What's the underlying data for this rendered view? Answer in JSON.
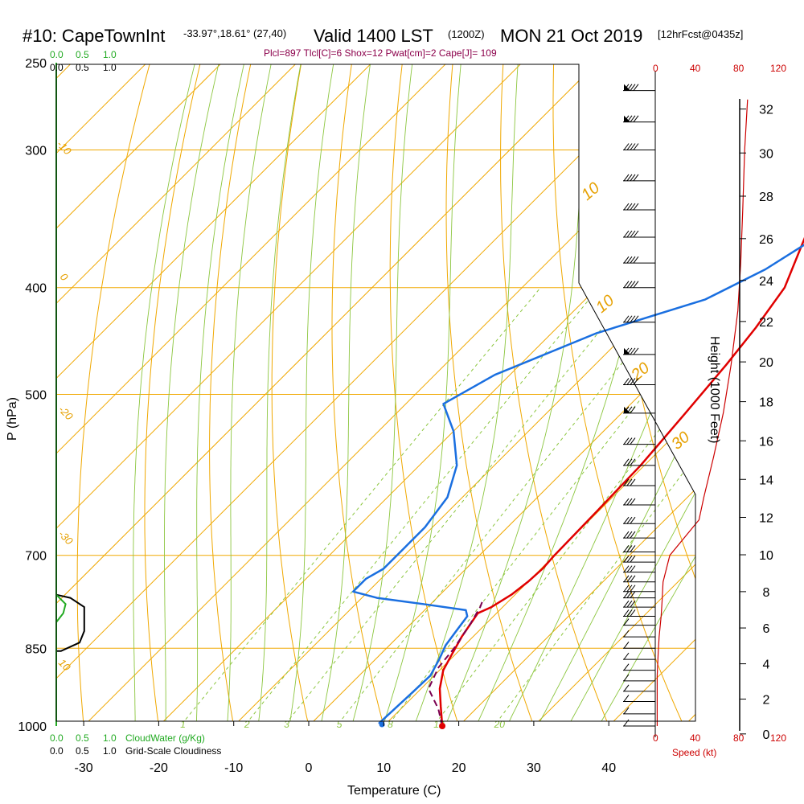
{
  "header": {
    "station": "#10: CapeTownInt",
    "coords": "-33.97°,18.61° (27,40)",
    "valid": "Valid 1400 LST",
    "zulu": "(1200Z)",
    "date": "MON 21 Oct 2019",
    "forecast": "[12hrFcst@0435z]"
  },
  "indices": "Plcl=897 Tlcl[C]=6 Shox=12 Pwat[cm]=2 Cape[J]= 109",
  "cloud_scale_top_green": [
    "0.0",
    "0.5",
    "1.0"
  ],
  "cloud_scale_top_black": [
    "0.0",
    "0.5",
    "1.0"
  ],
  "cloud_scale_bottom_green": [
    "0.0",
    "0.5",
    "1.0"
  ],
  "cloud_scale_bottom_black": [
    "0.0",
    "0.5",
    "1.0"
  ],
  "cloudwater_label": "CloudWater (g/Kg)",
  "cloudiness_label": "Grid-Scale Cloudiness",
  "speed_label": "Speed (kt)",
  "speed_ticks": [
    "0",
    "40",
    "80",
    "120"
  ],
  "colors": {
    "temperature": "#e00000",
    "dewpoint": "#1a6fe0",
    "parcel": "#7a0050",
    "isotherm": "#f0a800",
    "dry_adiabat": "#8cc63f",
    "moist_adiabat": "#8cc63f",
    "cloudwater": "#22aa22",
    "speed": "#cc0000"
  },
  "chart_data": {
    "type": "line",
    "title": "#10: CapeTownInt  Valid 1400 LST (1200Z) MON 21 Oct 2019",
    "xlabel": "Temperature (C)",
    "ylabel": "P (hPa)",
    "y2label": "Height (1000 Feet)",
    "x_ticks": [
      -30,
      -20,
      -10,
      0,
      10,
      20,
      30,
      40
    ],
    "y_ticks": [
      1000,
      850,
      700,
      500,
      400,
      300,
      250
    ],
    "y2_ticks": [
      0,
      2,
      4,
      6,
      8,
      10,
      12,
      14,
      16,
      18,
      20,
      22,
      24,
      26,
      28,
      30,
      32
    ],
    "isotherm_labels": [
      "0",
      "10",
      "20",
      "30",
      "-10",
      "-20",
      "-30",
      "-10",
      "0",
      "10"
    ],
    "mixing_ratio_labels": [
      "1",
      "2",
      "3",
      "5",
      "8",
      "12",
      "20"
    ],
    "series": [
      {
        "name": "Temperature",
        "points": [
          [
            17.8,
            1000
          ],
          [
            15,
            960
          ],
          [
            12.5,
            925
          ],
          [
            10.5,
            890
          ],
          [
            9.5,
            860
          ],
          [
            8.5,
            830
          ],
          [
            7.5,
            790
          ],
          [
            8.5,
            780
          ],
          [
            9.5,
            760
          ],
          [
            10,
            740
          ],
          [
            10.2,
            720
          ],
          [
            10,
            700
          ],
          [
            9.8,
            640
          ],
          [
            9.5,
            580
          ],
          [
            8.5,
            520
          ],
          [
            7.5,
            470
          ],
          [
            6.5,
            435
          ],
          [
            5,
            400
          ],
          [
            1,
            360
          ],
          [
            -6,
            300
          ],
          [
            -12,
            265
          ]
        ]
      },
      {
        "name": "Dewpoint",
        "points": [
          [
            9,
            995
          ],
          [
            9.3,
            940
          ],
          [
            9.5,
            900
          ],
          [
            8.5,
            870
          ],
          [
            7.5,
            845
          ],
          [
            7,
            820
          ],
          [
            6.5,
            795
          ],
          [
            5.5,
            785
          ],
          [
            -1,
            775
          ],
          [
            -8,
            765
          ],
          [
            -12,
            755
          ],
          [
            -12,
            735
          ],
          [
            -11,
            720
          ],
          [
            -11,
            690
          ],
          [
            -11,
            660
          ],
          [
            -12,
            620
          ],
          [
            -15,
            580
          ],
          [
            -20,
            540
          ],
          [
            -25,
            510
          ],
          [
            -22,
            480
          ],
          [
            -14,
            440
          ],
          [
            -4,
            410
          ],
          [
            0,
            385
          ],
          [
            2,
            365
          ],
          [
            1,
            330
          ],
          [
            -2,
            305
          ],
          [
            -6,
            270
          ]
        ]
      },
      {
        "name": "Parcel",
        "points": [
          [
            17.8,
            1000
          ],
          [
            15,
            965
          ],
          [
            11,
            925
          ],
          [
            9.5,
            885
          ],
          [
            9,
            850
          ],
          [
            8,
            810
          ],
          [
            7,
            780
          ],
          [
            6.5,
            770
          ]
        ]
      }
    ],
    "surface_temperature": 17.8,
    "surface_dewpoint": 10.3,
    "speed_profile_kt": [
      [
        2,
        1000
      ],
      [
        2,
        960
      ],
      [
        2,
        900
      ],
      [
        3,
        860
      ],
      [
        4,
        830
      ],
      [
        6,
        795
      ],
      [
        7,
        770
      ],
      [
        8,
        740
      ],
      [
        15,
        700
      ],
      [
        45,
        650
      ],
      [
        50,
        620
      ],
      [
        60,
        570
      ],
      [
        70,
        520
      ],
      [
        78,
        470
      ],
      [
        85,
        420
      ],
      [
        88,
        380
      ],
      [
        90,
        340
      ],
      [
        92,
        300
      ],
      [
        95,
        270
      ]
    ],
    "wind_barbs_pressure": [
      265,
      283,
      300,
      320,
      340,
      360,
      380,
      400,
      430,
      460,
      490,
      520,
      555,
      580,
      605,
      630,
      655,
      675,
      695,
      710,
      725,
      740,
      755,
      765,
      780,
      795,
      810,
      830,
      850,
      870,
      890,
      910,
      930,
      950,
      975,
      1000
    ],
    "cloudiness_profile": [
      [
        0,
        760
      ],
      [
        0.3,
        765
      ],
      [
        0.6,
        780
      ],
      [
        0.6,
        820
      ],
      [
        0.5,
        840
      ],
      [
        0.1,
        855
      ],
      [
        0,
        855
      ]
    ],
    "cloudwater_profile": [
      [
        0,
        760
      ],
      [
        0.2,
        775
      ],
      [
        0.15,
        790
      ],
      [
        0,
        805
      ]
    ]
  }
}
